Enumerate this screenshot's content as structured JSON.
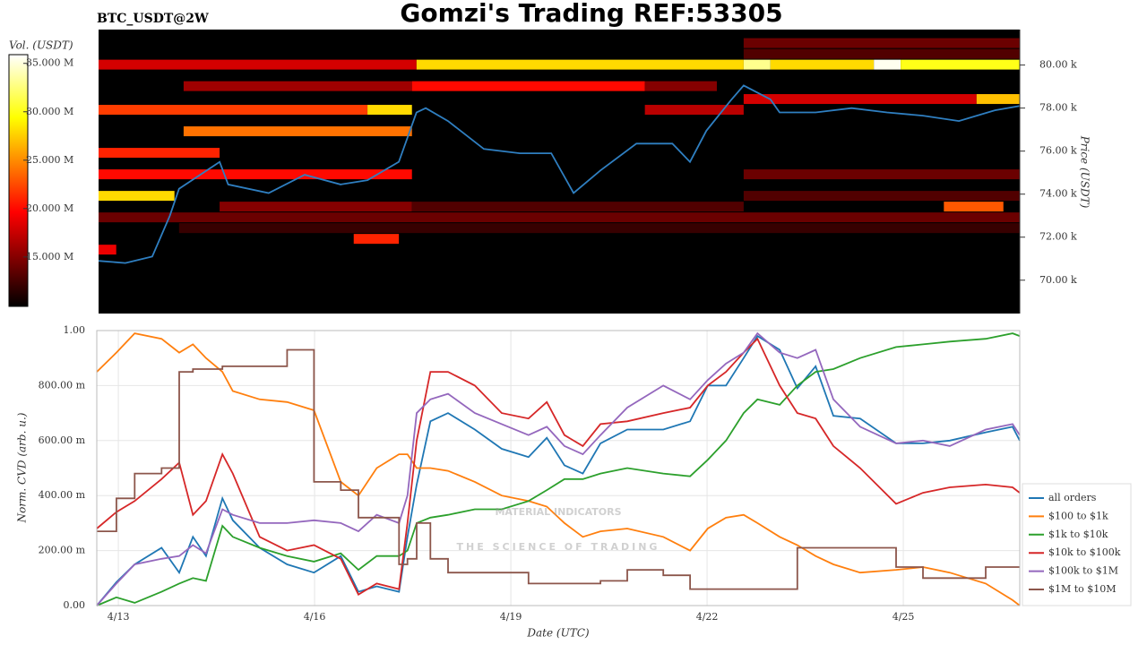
{
  "chart_data": [
    {
      "type": "heatmap",
      "title": "Gomzi's Trading REF:53305",
      "subtitle": "BTC_USDT@2W",
      "ylabel": "Price (USDT)",
      "xlim": [
        12.7,
        26.78
      ],
      "ylim": [
        68450,
        81650
      ],
      "yticks": [
        {
          "value": 70000,
          "label": "70.00 k"
        },
        {
          "value": 72000,
          "label": "72.00 k"
        },
        {
          "value": 74000,
          "label": "74.00 k"
        },
        {
          "value": 76000,
          "label": "76.00 k"
        },
        {
          "value": 78000,
          "label": "78.00 k"
        },
        {
          "value": 80000,
          "label": "80.00 k"
        }
      ],
      "colorbar": {
        "label": "Vol. (USDT)",
        "lim": [
          9900000,
          35900000
        ],
        "ticks": [
          {
            "value": 15000000,
            "label": "15.000 M"
          },
          {
            "value": 20000000,
            "label": "20.000 M"
          },
          {
            "value": 25000000,
            "label": "25.000 M"
          },
          {
            "value": 30000000,
            "label": "30.000 M"
          },
          {
            "value": 35000000,
            "label": "35.000 M"
          }
        ]
      },
      "cells": [
        {
          "price": 80000,
          "from": 12.7,
          "to": 17.56,
          "volume": 18000000
        },
        {
          "price": 80000,
          "from": 17.56,
          "to": 22.56,
          "volume": 28000000
        },
        {
          "price": 80000,
          "from": 22.56,
          "to": 22.97,
          "volume": 33000000
        },
        {
          "price": 80000,
          "from": 22.97,
          "to": 24.55,
          "volume": 28000000
        },
        {
          "price": 80000,
          "from": 24.55,
          "to": 24.96,
          "volume": 35500000
        },
        {
          "price": 80000,
          "from": 24.96,
          "to": 26.78,
          "volume": 30000000
        },
        {
          "price": 81000,
          "from": 22.56,
          "to": 26.78,
          "volume": 14000000
        },
        {
          "price": 80500,
          "from": 22.56,
          "to": 26.78,
          "volume": 13000000
        },
        {
          "price": 79000,
          "from": 14.0,
          "to": 17.49,
          "volume": 16000000
        },
        {
          "price": 79000,
          "from": 17.49,
          "to": 21.05,
          "volume": 20000000
        },
        {
          "price": 79000,
          "from": 21.05,
          "to": 22.15,
          "volume": 15000000
        },
        {
          "price": 78400,
          "from": 22.56,
          "to": 26.12,
          "volume": 18000000
        },
        {
          "price": 78400,
          "from": 26.12,
          "to": 26.78,
          "volume": 27000000
        },
        {
          "price": 77900,
          "from": 12.7,
          "to": 16.81,
          "volume": 22000000
        },
        {
          "price": 77900,
          "from": 16.81,
          "to": 17.49,
          "volume": 28000000
        },
        {
          "price": 77900,
          "from": 21.05,
          "to": 22.56,
          "volume": 17000000
        },
        {
          "price": 76900,
          "from": 14.0,
          "to": 17.49,
          "volume": 24000000
        },
        {
          "price": 75900,
          "from": 12.7,
          "to": 14.55,
          "volume": 21000000
        },
        {
          "price": 74900,
          "from": 12.7,
          "to": 17.49,
          "volume": 20000000
        },
        {
          "price": 74900,
          "from": 22.56,
          "to": 26.78,
          "volume": 14000000
        },
        {
          "price": 73900,
          "from": 12.7,
          "to": 13.86,
          "volume": 28000000
        },
        {
          "price": 73900,
          "from": 22.56,
          "to": 26.78,
          "volume": 13000000
        },
        {
          "price": 73400,
          "from": 14.55,
          "to": 17.49,
          "volume": 15000000
        },
        {
          "price": 73400,
          "from": 17.49,
          "to": 22.56,
          "volume": 13000000
        },
        {
          "price": 73400,
          "from": 25.62,
          "to": 26.53,
          "volume": 23000000
        },
        {
          "price": 72900,
          "from": 12.7,
          "to": 26.78,
          "volume": 14000000
        },
        {
          "price": 72400,
          "from": 13.93,
          "to": 26.78,
          "volume": 12000000
        },
        {
          "price": 71900,
          "from": 16.6,
          "to": 17.29,
          "volume": 21000000
        },
        {
          "price": 71400,
          "from": 12.7,
          "to": 12.97,
          "volume": 19000000
        }
      ],
      "price_line": {
        "color": "#2f7fc1",
        "x": [
          12.7,
          13.11,
          13.52,
          13.79,
          13.93,
          14.55,
          14.68,
          15.3,
          15.85,
          16.4,
          16.81,
          17.29,
          17.56,
          17.7,
          18.04,
          18.59,
          19.14,
          19.62,
          19.96,
          20.37,
          20.92,
          21.47,
          21.74,
          21.99,
          22.36,
          22.56,
          22.97,
          23.11,
          23.66,
          24.21,
          24.75,
          25.3,
          25.85,
          26.4,
          26.78
        ],
        "values": [
          70900,
          70800,
          71100,
          73000,
          74250,
          75500,
          74450,
          74050,
          74900,
          74450,
          74650,
          75500,
          77800,
          78000,
          77400,
          76100,
          75900,
          75900,
          74050,
          75100,
          76350,
          76350,
          75500,
          76950,
          78350,
          79050,
          78400,
          77800,
          77800,
          78000,
          77800,
          77650,
          77400,
          77900,
          78100
        ]
      }
    },
    {
      "type": "line",
      "xlabel": "Date (UTC)",
      "ylabel": "Norm. CVD (arb. u.)",
      "annotations": [
        "MATERIAL INDICATORS",
        "THE SCIENCE OF TRADING"
      ],
      "grid": true,
      "legend": "right",
      "xlim": [
        12.67,
        26.78
      ],
      "xticks": [
        {
          "value": 13,
          "label": "4/13"
        },
        {
          "value": 16,
          "label": "4/16"
        },
        {
          "value": 19,
          "label": "4/19"
        },
        {
          "value": 22,
          "label": "4/22"
        },
        {
          "value": 25,
          "label": "4/25"
        }
      ],
      "ylim": [
        0,
        1
      ],
      "yticks": [
        {
          "value": 0,
          "label": "0.00"
        },
        {
          "value": 0.2,
          "label": "200.00 m"
        },
        {
          "value": 0.4,
          "label": "400.00 m"
        },
        {
          "value": 0.6,
          "label": "600.00 m"
        },
        {
          "value": 0.8,
          "label": "800.00 m"
        },
        {
          "value": 1,
          "label": "1.00"
        }
      ],
      "x": [
        12.67,
        12.97,
        13.25,
        13.66,
        13.93,
        14.14,
        14.34,
        14.59,
        14.75,
        15.16,
        15.58,
        15.99,
        16.4,
        16.67,
        16.95,
        17.29,
        17.42,
        17.56,
        17.77,
        18.04,
        18.45,
        18.86,
        19.27,
        19.55,
        19.82,
        20.1,
        20.37,
        20.78,
        21.33,
        21.74,
        22.01,
        22.29,
        22.56,
        22.77,
        23.11,
        23.38,
        23.66,
        23.93,
        24.34,
        24.89,
        25.3,
        25.71,
        26.26,
        26.67,
        26.78
      ],
      "series": [
        {
          "name": "all orders",
          "color": "#1f77b4",
          "values": [
            0.0,
            0.085,
            0.15,
            0.21,
            0.12,
            0.25,
            0.18,
            0.39,
            0.31,
            0.21,
            0.15,
            0.12,
            0.18,
            0.05,
            0.07,
            0.05,
            0.25,
            0.44,
            0.67,
            0.7,
            0.64,
            0.57,
            0.54,
            0.61,
            0.51,
            0.48,
            0.59,
            0.64,
            0.64,
            0.67,
            0.8,
            0.8,
            0.9,
            0.98,
            0.93,
            0.79,
            0.87,
            0.69,
            0.68,
            0.59,
            0.59,
            0.6,
            0.63,
            0.65,
            0.6
          ]
        },
        {
          "name": "$100 to $1k",
          "color": "#ff7f0e",
          "values": [
            0.85,
            0.92,
            0.99,
            0.97,
            0.92,
            0.95,
            0.9,
            0.85,
            0.78,
            0.75,
            0.74,
            0.71,
            0.45,
            0.4,
            0.5,
            0.55,
            0.55,
            0.5,
            0.5,
            0.49,
            0.45,
            0.4,
            0.38,
            0.36,
            0.3,
            0.25,
            0.27,
            0.28,
            0.25,
            0.2,
            0.28,
            0.32,
            0.33,
            0.3,
            0.25,
            0.22,
            0.18,
            0.15,
            0.12,
            0.13,
            0.14,
            0.12,
            0.08,
            0.02,
            0.0
          ]
        },
        {
          "name": "$1k to $10k",
          "color": "#2ca02c",
          "values": [
            0.0,
            0.03,
            0.01,
            0.05,
            0.08,
            0.1,
            0.09,
            0.29,
            0.25,
            0.21,
            0.18,
            0.16,
            0.19,
            0.13,
            0.18,
            0.18,
            0.2,
            0.3,
            0.32,
            0.33,
            0.35,
            0.35,
            0.38,
            0.42,
            0.46,
            0.46,
            0.48,
            0.5,
            0.48,
            0.47,
            0.53,
            0.6,
            0.7,
            0.75,
            0.73,
            0.8,
            0.85,
            0.86,
            0.9,
            0.94,
            0.95,
            0.96,
            0.97,
            0.99,
            0.98
          ]
        },
        {
          "name": "$10k to $100k",
          "color": "#d62728",
          "values": [
            0.28,
            0.34,
            0.38,
            0.46,
            0.52,
            0.33,
            0.38,
            0.55,
            0.48,
            0.25,
            0.2,
            0.22,
            0.17,
            0.04,
            0.08,
            0.06,
            0.3,
            0.6,
            0.85,
            0.85,
            0.8,
            0.7,
            0.68,
            0.74,
            0.62,
            0.58,
            0.66,
            0.67,
            0.7,
            0.72,
            0.8,
            0.85,
            0.92,
            0.97,
            0.8,
            0.7,
            0.68,
            0.58,
            0.5,
            0.37,
            0.41,
            0.43,
            0.44,
            0.43,
            0.41
          ]
        },
        {
          "name": "$100k to $1M",
          "color": "#9467bd",
          "values": [
            0.0,
            0.08,
            0.15,
            0.17,
            0.18,
            0.22,
            0.19,
            0.35,
            0.33,
            0.3,
            0.3,
            0.31,
            0.3,
            0.27,
            0.33,
            0.3,
            0.4,
            0.7,
            0.75,
            0.77,
            0.7,
            0.66,
            0.62,
            0.65,
            0.58,
            0.55,
            0.62,
            0.72,
            0.8,
            0.75,
            0.82,
            0.88,
            0.92,
            0.99,
            0.92,
            0.9,
            0.93,
            0.75,
            0.65,
            0.59,
            0.6,
            0.58,
            0.64,
            0.66,
            0.62
          ]
        },
        {
          "name": "$1M to $10M",
          "color": "#8c564b",
          "drawstyle": "steps-post",
          "values": [
            0.27,
            0.39,
            0.48,
            0.5,
            0.85,
            0.86,
            0.86,
            0.87,
            0.87,
            0.87,
            0.93,
            0.45,
            0.42,
            0.32,
            0.32,
            0.15,
            0.17,
            0.3,
            0.17,
            0.12,
            0.12,
            0.12,
            0.08,
            0.08,
            0.08,
            0.08,
            0.09,
            0.13,
            0.11,
            0.06,
            0.06,
            0.06,
            0.06,
            0.06,
            0.06,
            0.21,
            0.21,
            0.21,
            0.21,
            0.14,
            0.1,
            0.1,
            0.14,
            0.14,
            0.14
          ]
        }
      ]
    }
  ]
}
